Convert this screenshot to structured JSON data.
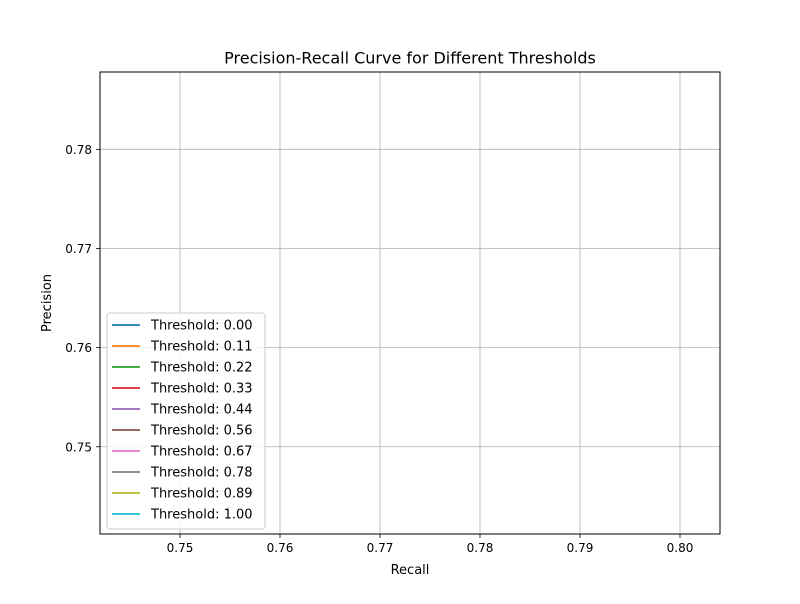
{
  "chart_data": {
    "type": "line",
    "title": "Precision-Recall Curve for Different Thresholds",
    "xlabel": "Recall",
    "ylabel": "Precision",
    "xlim": [
      0.742,
      0.804
    ],
    "ylim": [
      0.7412,
      0.7878
    ],
    "xticks": [
      0.75,
      0.76,
      0.77,
      0.78,
      0.79,
      0.8
    ],
    "xtick_labels": [
      "0.75",
      "0.76",
      "0.77",
      "0.78",
      "0.79",
      "0.80"
    ],
    "yticks": [
      0.75,
      0.76,
      0.77,
      0.78
    ],
    "ytick_labels": [
      "0.75",
      "0.76",
      "0.77",
      "0.78"
    ],
    "grid": true,
    "legend_position": "lower-left",
    "series": [
      {
        "name": "Threshold: 0.00",
        "color": "#1f77b4",
        "x": [],
        "y": []
      },
      {
        "name": "Threshold: 0.11",
        "color": "#ff7f0e",
        "x": [],
        "y": []
      },
      {
        "name": "Threshold: 0.22",
        "color": "#2ca02c",
        "x": [],
        "y": []
      },
      {
        "name": "Threshold: 0.33",
        "color": "#d62728",
        "x": [],
        "y": []
      },
      {
        "name": "Threshold: 0.44",
        "color": "#9467bd",
        "x": [],
        "y": []
      },
      {
        "name": "Threshold: 0.56",
        "color": "#8c564b",
        "x": [],
        "y": []
      },
      {
        "name": "Threshold: 0.67",
        "color": "#e377c2",
        "x": [],
        "y": []
      },
      {
        "name": "Threshold: 0.78",
        "color": "#7f7f7f",
        "x": [],
        "y": []
      },
      {
        "name": "Threshold: 0.89",
        "color": "#bcbd22",
        "x": [],
        "y": []
      },
      {
        "name": "Threshold: 1.00",
        "color": "#17becf",
        "x": [],
        "y": []
      }
    ]
  }
}
